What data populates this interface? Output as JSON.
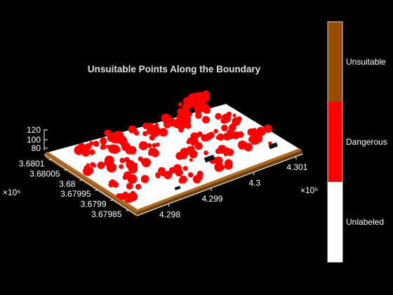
{
  "chart_data": {
    "type": "scatter3d",
    "title": "Unsuitable Points Along the Boundary",
    "xlabel": "",
    "ylabel": "",
    "zlabel": "",
    "x_ticks": [
      "4.298",
      "4.299",
      "4.3",
      "4.301"
    ],
    "x_exponent": "×10⁵",
    "y_ticks": [
      "3.6801",
      "3.68005",
      "3.68",
      "3.67995",
      "3.6799",
      "3.67985"
    ],
    "y_exponent": "×10⁶",
    "z_ticks": [
      "120",
      "100",
      "80"
    ],
    "zlim": [
      70,
      120
    ],
    "grid": false,
    "classes": [
      {
        "name": "Unsuitable",
        "color": "#994D00"
      },
      {
        "name": "Dangerous",
        "color": "#FF0000"
      },
      {
        "name": "Unlabeled",
        "color": "#FFFFFF"
      }
    ],
    "colorbar": {
      "placement": "right",
      "labels_top_to_bottom": [
        "Unsuitable",
        "Dangerous",
        "Unlabeled"
      ]
    }
  }
}
